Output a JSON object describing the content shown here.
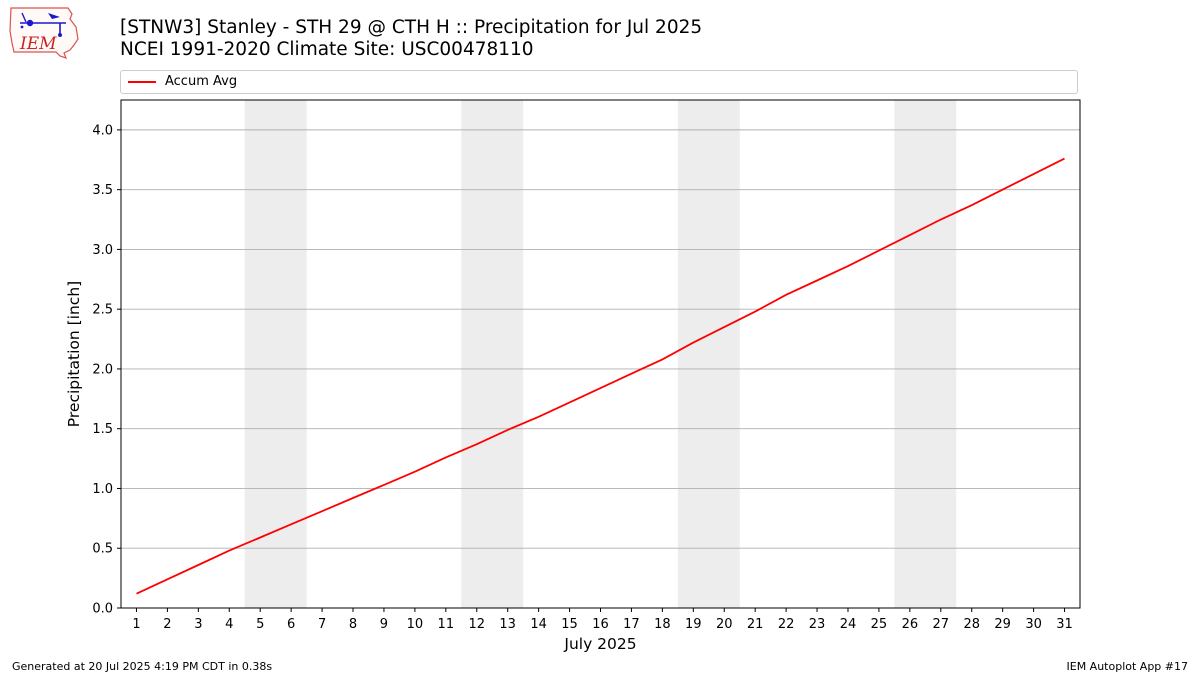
{
  "logo": {
    "text": "IEM"
  },
  "title": {
    "line1": "[STNW3] Stanley - STH 29 @ CTH H :: Precipitation for Jul 2025",
    "line2": "NCEI 1991-2020 Climate Site: USC00478110"
  },
  "footer": {
    "left": "Generated at 20 Jul 2025 4:19 PM CDT in 0.38s",
    "right": "IEM Autoplot App #17"
  },
  "colors": {
    "line": "#ff0000",
    "weekend_shade": "#ededed",
    "grid": "#b0b0b0"
  },
  "chart_data": {
    "type": "line",
    "xlabel": "July 2025",
    "ylabel": "Precipitation [inch]",
    "x": [
      1,
      2,
      3,
      4,
      5,
      6,
      7,
      8,
      9,
      10,
      11,
      12,
      13,
      14,
      15,
      16,
      17,
      18,
      19,
      20,
      21,
      22,
      23,
      24,
      25,
      26,
      27,
      28,
      29,
      30,
      31
    ],
    "xlim": [
      0.5,
      31.5
    ],
    "ylim": [
      0,
      4.25
    ],
    "yticks": [
      0.0,
      0.5,
      1.0,
      1.5,
      2.0,
      2.5,
      3.0,
      3.5,
      4.0
    ],
    "ytick_labels": [
      "0.0",
      "0.5",
      "1.0",
      "1.5",
      "2.0",
      "2.5",
      "3.0",
      "3.5",
      "4.0"
    ],
    "grid": "horizontal",
    "legend_position": "top",
    "weekend_shading": [
      [
        4.5,
        6.5
      ],
      [
        11.5,
        13.5
      ],
      [
        18.5,
        20.5
      ],
      [
        25.5,
        27.5
      ]
    ],
    "series": [
      {
        "name": "Accum Avg",
        "color": "#ff0000",
        "values": [
          0.12,
          0.24,
          0.36,
          0.48,
          0.59,
          0.7,
          0.81,
          0.92,
          1.03,
          1.14,
          1.26,
          1.37,
          1.49,
          1.6,
          1.72,
          1.84,
          1.96,
          2.08,
          2.22,
          2.35,
          2.48,
          2.62,
          2.74,
          2.86,
          2.99,
          3.12,
          3.25,
          3.37,
          3.5,
          3.63,
          3.76
        ]
      }
    ]
  }
}
